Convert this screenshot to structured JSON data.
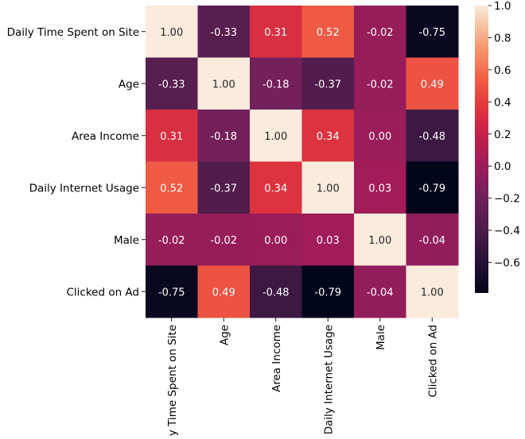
{
  "chart_data": {
    "type": "heatmap",
    "title": "",
    "xlabel": "",
    "ylabel": "",
    "row_labels": [
      "Daily Time Spent on Site",
      "Age",
      "Area Income",
      "Daily Internet Usage",
      "Male",
      "Clicked on Ad"
    ],
    "column_labels": [
      "Daily Time Spent on Site",
      "Age",
      "Area Income",
      "Daily Internet Usage",
      "Male",
      "Clicked on Ad"
    ],
    "values": [
      [
        1.0,
        -0.33,
        0.31,
        0.52,
        -0.02,
        -0.75
      ],
      [
        -0.33,
        1.0,
        -0.18,
        -0.37,
        -0.02,
        0.49
      ],
      [
        0.31,
        -0.18,
        1.0,
        0.34,
        0.0,
        -0.48
      ],
      [
        0.52,
        -0.37,
        0.34,
        1.0,
        0.03,
        -0.79
      ],
      [
        -0.02,
        -0.02,
        0.0,
        0.03,
        1.0,
        -0.04
      ],
      [
        -0.75,
        0.49,
        -0.48,
        -0.79,
        -0.04,
        1.0
      ]
    ],
    "value_labels": [
      [
        "1.00",
        "-0.33",
        "0.31",
        "0.52",
        "-0.02",
        "-0.75"
      ],
      [
        "-0.33",
        "1.00",
        "-0.18",
        "-0.37",
        "-0.02",
        "0.49"
      ],
      [
        "0.31",
        "-0.18",
        "1.00",
        "0.34",
        "0.00",
        "-0.48"
      ],
      [
        "0.52",
        "-0.37",
        "0.34",
        "1.00",
        "0.03",
        "-0.79"
      ],
      [
        "-0.02",
        "-0.02",
        "0.00",
        "0.03",
        "1.00",
        "-0.04"
      ],
      [
        "-0.75",
        "0.49",
        "-0.48",
        "-0.79",
        "-0.04",
        "1.00"
      ]
    ],
    "colorbar": {
      "range": [
        -0.79,
        1.0
      ],
      "ticks": [
        1.0,
        0.8,
        0.6,
        0.4,
        0.2,
        0.0,
        -0.2,
        -0.4,
        -0.6
      ],
      "tick_labels": [
        "1.0",
        "0.8",
        "0.6",
        "0.4",
        "0.2",
        "0.0",
        "−0.2",
        "−0.4",
        "−0.6"
      ],
      "palette": "rocket"
    },
    "grid": false,
    "legend": "right colorbar"
  }
}
